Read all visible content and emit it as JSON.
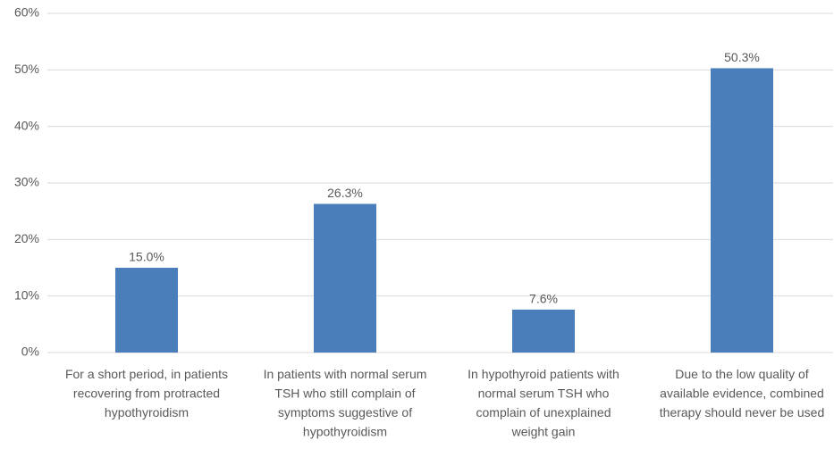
{
  "chart_data": {
    "type": "bar",
    "categories": [
      "For a short period, in patients recovering from protracted hypothyroidism",
      "In patients with normal serum TSH who still complain of symptoms suggestive of hypothyroidism",
      "In hypothyroid patients with normal serum TSH who complain of unexplained weight gain",
      "Due to the low quality of available evidence, combined therapy should never be used"
    ],
    "values": [
      15.0,
      26.3,
      7.6,
      50.3
    ],
    "value_labels": [
      "15.0%",
      "26.3%",
      "7.6%",
      "50.3%"
    ],
    "color": "#4a7ebb",
    "ylim": [
      0,
      60
    ],
    "yticks": [
      {
        "value": 0,
        "label": "0%"
      },
      {
        "value": 10,
        "label": "10%"
      },
      {
        "value": 20,
        "label": "20%"
      },
      {
        "value": 30,
        "label": "30%"
      },
      {
        "value": 40,
        "label": "40%"
      },
      {
        "value": 50,
        "label": "50%"
      },
      {
        "value": 60,
        "label": "60%"
      }
    ],
    "grid": true
  }
}
